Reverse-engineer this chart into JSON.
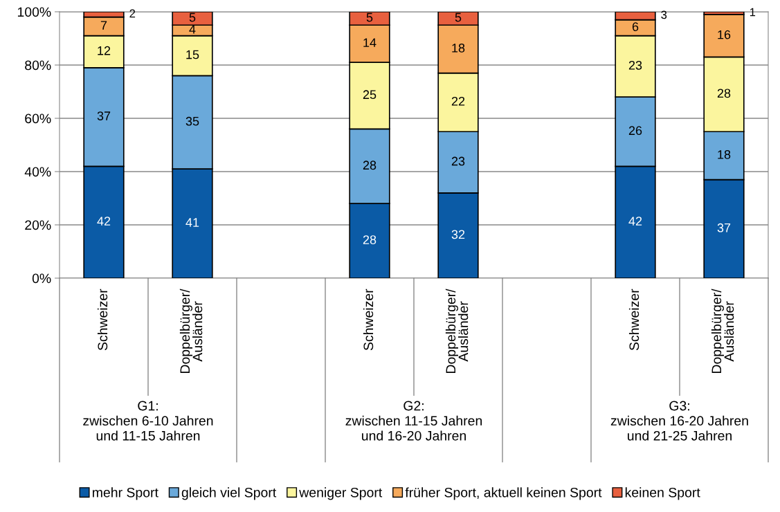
{
  "chart_data": {
    "type": "bar",
    "stacked": true,
    "categories": [
      "Schweizer",
      "Doppelbürger/\nAusländer",
      null,
      "Schweizer",
      "Doppelbürger/\nAusländer",
      null,
      "Schweizer",
      "Doppelbürger/\nAusländer"
    ],
    "series": [
      {
        "name": "mehr Sport",
        "color": "#0b5ba6",
        "values": [
          42,
          41,
          null,
          28,
          32,
          null,
          42,
          37
        ]
      },
      {
        "name": "gleich viel Sport",
        "color": "#6aa9da",
        "values": [
          37,
          35,
          null,
          28,
          23,
          null,
          26,
          18
        ]
      },
      {
        "name": "weniger Sport",
        "color": "#fbf59e",
        "values": [
          12,
          15,
          null,
          25,
          22,
          null,
          23,
          28
        ]
      },
      {
        "name": "früher Sport, aktuell keinen Sport",
        "color": "#f6aa5c",
        "values": [
          7,
          4,
          null,
          14,
          18,
          null,
          6,
          16
        ]
      },
      {
        "name": "keinen Sport",
        "color": "#e8603f",
        "values": [
          2,
          5,
          null,
          5,
          5,
          null,
          3,
          1
        ]
      }
    ],
    "annotations": [
      "G1:\nzwischen 6-10 Jahren\nund 11-15 Jahren",
      "G2:\nzwischen 11-15 Jahren\nund 16-20 Jahren",
      "G3:\nzwischen 16-20 Jahren\nund 21-25 Jahren"
    ],
    "ylim": [
      0,
      100
    ],
    "yticks": [
      {
        "value": 0,
        "label": "0%"
      },
      {
        "value": 20,
        "label": "20%"
      },
      {
        "value": 40,
        "label": "40%"
      },
      {
        "value": 60,
        "label": "60%"
      },
      {
        "value": 80,
        "label": "80%"
      },
      {
        "value": 100,
        "label": "100%"
      }
    ],
    "grid": "y",
    "legend": "bottom",
    "data_labels": true
  }
}
